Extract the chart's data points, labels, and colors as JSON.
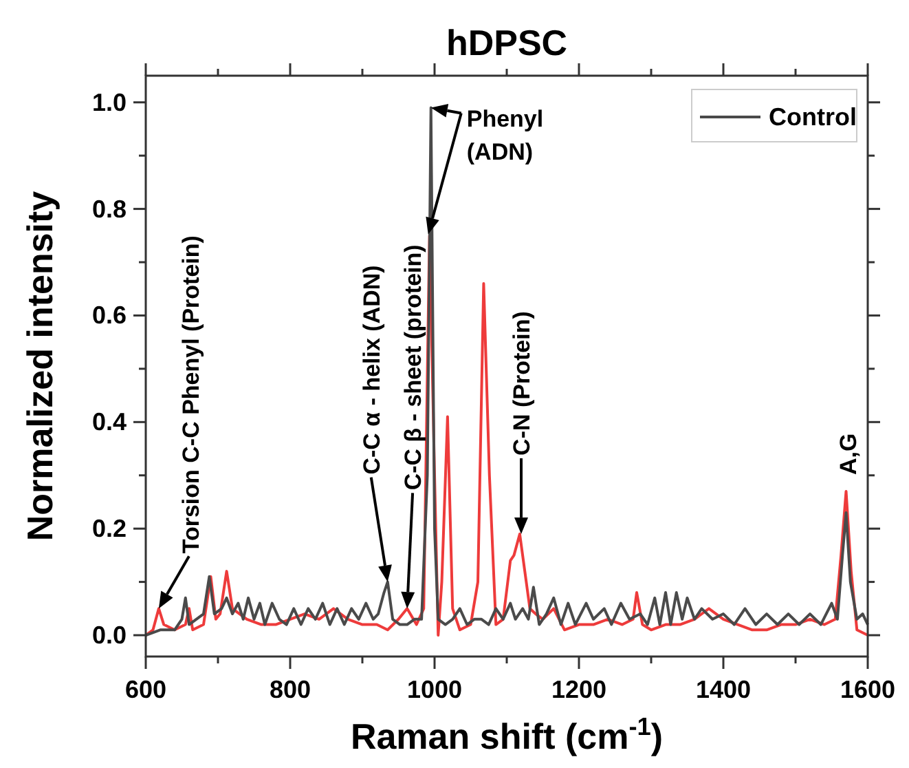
{
  "chart_data": {
    "type": "line",
    "title": "hDPSC",
    "xlabel": "Raman shift (cm$^{-1}$)",
    "ylabel": "Normalized intensity",
    "xlim": [
      600,
      1600
    ],
    "ylim": [
      -0.04,
      1.05
    ],
    "xticks": [
      600,
      {
        "value": 700,
        "label": null
      },
      800,
      {
        "value": 900,
        "label": null
      },
      1000,
      {
        "value": 1100,
        "label": null
      },
      1200,
      {
        "value": 1300,
        "label": null
      },
      1400,
      {
        "value": 1500,
        "label": null
      },
      1600
    ],
    "yticks": [
      {
        "value": 0,
        "label": "0.0"
      },
      {
        "value": 0.1,
        "label": null
      },
      {
        "value": 0.2,
        "label": "0.2"
      },
      {
        "value": 0.3,
        "label": null
      },
      {
        "value": 0.4,
        "label": "0.4"
      },
      {
        "value": 0.5,
        "label": null
      },
      {
        "value": 0.6,
        "label": "0.6"
      },
      {
        "value": 0.7,
        "label": null
      },
      {
        "value": 0.8,
        "label": "0.8"
      },
      {
        "value": 0.9,
        "label": null
      },
      {
        "value": 1,
        "label": "1.0"
      }
    ],
    "grid": false,
    "legend": "top right",
    "line_style": "solid",
    "series": [
      {
        "color": "#ee3b3b",
        "x": [
          600,
          610,
          618,
          625,
          640,
          655,
          660,
          665,
          680,
          690,
          697,
          703,
          712,
          720,
          740,
          760,
          780,
          800,
          820,
          840,
          860,
          880,
          900,
          920,
          935,
          950,
          962,
          975,
          985,
          993,
          1000,
          1005,
          1010,
          1018,
          1025,
          1035,
          1050,
          1060,
          1068,
          1076,
          1085,
          1095,
          1105,
          1110,
          1118,
          1125,
          1132,
          1140,
          1150,
          1165,
          1180,
          1200,
          1220,
          1240,
          1260,
          1275,
          1280,
          1288,
          1300,
          1320,
          1340,
          1360,
          1380,
          1400,
          1420,
          1440,
          1460,
          1480,
          1500,
          1520,
          1540,
          1555,
          1563,
          1570,
          1577,
          1585,
          1600
        ],
        "values": [
          0,
          0.01,
          0.05,
          0.02,
          0.01,
          0.02,
          0.05,
          0.01,
          0.02,
          0.11,
          0.03,
          0.04,
          0.12,
          0.05,
          0.03,
          0.02,
          0.02,
          0.03,
          0.04,
          0.03,
          0.05,
          0.03,
          0.02,
          0.02,
          0.01,
          0.03,
          0.05,
          0.02,
          0.05,
          0.75,
          0.3,
          0,
          0.1,
          0.41,
          0.05,
          0.01,
          0.02,
          0.1,
          0.66,
          0.3,
          0.02,
          0.03,
          0.14,
          0.15,
          0.19,
          0.12,
          0.05,
          0.04,
          0.03,
          0.05,
          0.01,
          0.02,
          0.02,
          0.03,
          0.02,
          0.03,
          0.08,
          0.02,
          0.01,
          0.02,
          0.02,
          0.03,
          0.05,
          0.03,
          0.02,
          0.01,
          0.01,
          0.02,
          0.02,
          0.03,
          0.02,
          0.03,
          0.15,
          0.27,
          0.12,
          0.01,
          0
        ]
      },
      {
        "name": "Control",
        "color": "#4a4a4a",
        "x": [
          600,
          620,
          640,
          650,
          655,
          660,
          670,
          680,
          688,
          695,
          705,
          712,
          720,
          728,
          735,
          742,
          750,
          758,
          765,
          775,
          785,
          795,
          805,
          815,
          825,
          835,
          845,
          855,
          865,
          875,
          885,
          895,
          905,
          915,
          922,
          930,
          935,
          942,
          952,
          962,
          972,
          982,
          990,
          995,
          1000,
          1005,
          1015,
          1025,
          1035,
          1045,
          1055,
          1065,
          1075,
          1085,
          1095,
          1105,
          1112,
          1122,
          1130,
          1137,
          1145,
          1155,
          1165,
          1175,
          1185,
          1195,
          1210,
          1220,
          1235,
          1245,
          1258,
          1270,
          1285,
          1295,
          1305,
          1312,
          1320,
          1327,
          1335,
          1343,
          1350,
          1360,
          1370,
          1385,
          1400,
          1415,
          1430,
          1445,
          1460,
          1475,
          1490,
          1505,
          1520,
          1535,
          1550,
          1558,
          1565,
          1570,
          1576,
          1585,
          1593,
          1600
        ],
        "values": [
          0,
          0.01,
          0.01,
          0.03,
          0.07,
          0.02,
          0.03,
          0.04,
          0.11,
          0.04,
          0.05,
          0.07,
          0.04,
          0.06,
          0.03,
          0.07,
          0.03,
          0.06,
          0.02,
          0.06,
          0.03,
          0.02,
          0.05,
          0.02,
          0.05,
          0.03,
          0.06,
          0.02,
          0.05,
          0.02,
          0.05,
          0.03,
          0.06,
          0.03,
          0.04,
          0.08,
          0.1,
          0.03,
          0.02,
          0.02,
          0.03,
          0.03,
          0.3,
          0.99,
          0.2,
          0.03,
          0.02,
          0.03,
          0.05,
          0.02,
          0.03,
          0.03,
          0.02,
          0.05,
          0.03,
          0.06,
          0.03,
          0.05,
          0.03,
          0.09,
          0.02,
          0.04,
          0.07,
          0.02,
          0.06,
          0.02,
          0.06,
          0.03,
          0.05,
          0.02,
          0.06,
          0.03,
          0.04,
          0.02,
          0.07,
          0.02,
          0.08,
          0.02,
          0.08,
          0.03,
          0.07,
          0.03,
          0.05,
          0.03,
          0.04,
          0.02,
          0.05,
          0.02,
          0.04,
          0.02,
          0.04,
          0.02,
          0.04,
          0.02,
          0.06,
          0.03,
          0.15,
          0.23,
          0.1,
          0.03,
          0.04,
          0.02
        ]
      }
    ],
    "annotations": [
      {
        "text": "Torsion C-C Phenyl (Protein)",
        "x": 618,
        "y": 0.05
      },
      "C-C α - helix (ADN)",
      "C-C β - sheet (protein)",
      {
        "text": "Phenyl\n(ADN)",
        "x": 995,
        "y": 0.99
      },
      "C-N (Protein)",
      {
        "text": "A,G",
        "x": 1570,
        "y": 0.27
      }
    ]
  }
}
